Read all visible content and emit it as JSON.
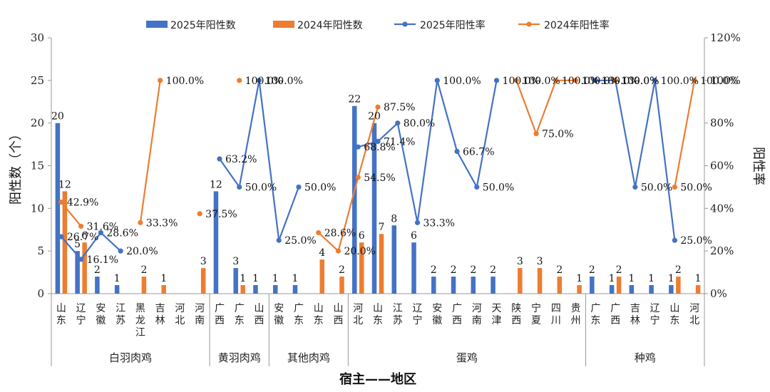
{
  "chart_data": {
    "type": "bar",
    "categories": [
      "山东",
      "辽宁",
      "安徽",
      "江苏",
      "黑龙江",
      "吉林",
      "河北",
      "河南",
      "广西",
      "广东",
      "山西",
      "安徽",
      "广东",
      "山东",
      "山西",
      "河北",
      "山东",
      "江苏",
      "辽宁",
      "安徽",
      "广西",
      "河南",
      "天津",
      "陕西",
      "宁夏",
      "四川",
      "贵州",
      "广东",
      "广西",
      "吉林",
      "辽宁",
      "山东",
      "河北"
    ],
    "groups": [
      {
        "name": "白羽肉鸡",
        "start": 0,
        "end": 7
      },
      {
        "name": "黄羽肉鸡",
        "start": 8,
        "end": 10
      },
      {
        "name": "其他肉鸡",
        "start": 11,
        "end": 14
      },
      {
        "name": "蛋鸡",
        "start": 15,
        "end": 26
      },
      {
        "name": "种鸡",
        "start": 27,
        "end": 32
      }
    ],
    "series": [
      {
        "name": "2025年阳性数",
        "kind": "bar",
        "axis": "left",
        "color": "#4472C4",
        "values": [
          20,
          5,
          2,
          1,
          null,
          null,
          null,
          null,
          12,
          3,
          1,
          1,
          1,
          null,
          null,
          22,
          20,
          8,
          6,
          2,
          2,
          2,
          2,
          null,
          null,
          null,
          null,
          2,
          1,
          1,
          1,
          1,
          null
        ],
        "labels": [
          "20",
          "5",
          "2",
          "1",
          "",
          "",
          "",
          "",
          "12",
          "3",
          "1",
          "1",
          "1",
          "",
          "",
          "22",
          "20",
          "8",
          "6",
          "2",
          "2",
          "2",
          "2",
          "",
          "",
          "",
          "",
          "2",
          "1",
          "1",
          "1",
          "1",
          ""
        ]
      },
      {
        "name": "2024年阳性数",
        "kind": "bar",
        "axis": "left",
        "color": "#ED7D31",
        "values": [
          12,
          6,
          null,
          null,
          2,
          1,
          null,
          3,
          null,
          1,
          null,
          null,
          null,
          4,
          2,
          6,
          7,
          null,
          null,
          null,
          null,
          null,
          null,
          3,
          3,
          2,
          1,
          null,
          2,
          null,
          null,
          2,
          1
        ],
        "labels": [
          "12",
          "6",
          "",
          "",
          "2",
          "1",
          "",
          "3",
          "",
          "1",
          "",
          "",
          "",
          "4",
          "2",
          "6",
          "7",
          "",
          "",
          "",
          "",
          "",
          "",
          "3",
          "3",
          "2",
          "1",
          "",
          "2",
          "",
          "",
          "2",
          "1"
        ]
      },
      {
        "name": "2025年阳性率",
        "kind": "line",
        "axis": "right",
        "color": "#4472C4",
        "values": [
          26.7,
          16.1,
          28.6,
          20.0,
          null,
          null,
          null,
          null,
          63.2,
          50.0,
          100.0,
          25.0,
          50.0,
          null,
          null,
          68.8,
          71.4,
          80.0,
          33.3,
          100.0,
          66.7,
          50.0,
          100.0,
          null,
          null,
          null,
          null,
          100.0,
          100.0,
          50.0,
          100.0,
          25.0,
          null
        ],
        "labels": [
          "26.7%",
          "16.1%",
          "28.6%",
          "20.0%",
          "",
          "",
          "",
          "",
          "63.2%",
          "50.0%",
          "100.0%",
          "25.0%",
          "50.0%",
          "",
          "",
          "68.8%",
          "71.4%",
          "80.0%",
          "33.3%",
          "100.0%",
          "66.7%",
          "50.0%",
          "100.0%",
          "",
          "",
          "",
          "",
          "100.0%",
          "100.0%",
          "50.0%",
          "100.0%",
          "25.0%",
          ""
        ]
      },
      {
        "name": "2024年阳性率",
        "kind": "line",
        "axis": "right",
        "color": "#ED7D31",
        "values": [
          42.9,
          31.6,
          null,
          null,
          33.3,
          100.0,
          null,
          37.5,
          null,
          100.0,
          null,
          null,
          null,
          28.6,
          20.0,
          54.5,
          87.5,
          null,
          null,
          null,
          null,
          null,
          null,
          100.0,
          75.0,
          100.0,
          100.0,
          null,
          100.0,
          null,
          null,
          50.0,
          100.0
        ],
        "labels": [
          "42.9%",
          "31.6%",
          "",
          "",
          "33.3%",
          "100.0%",
          "",
          "37.5%",
          "",
          "100.0%",
          "",
          "",
          "",
          "28.6%",
          "20.0%",
          "54.5%",
          "87.5%",
          "",
          "",
          "",
          "",
          "",
          "",
          "100.0%",
          "75.0%",
          "100.0%",
          "100.0%",
          "",
          "100.0%",
          "",
          "",
          "50.0%",
          "100.0%"
        ]
      }
    ],
    "ylabel": "阳性数（个）",
    "y2label": "阳性率",
    "xlabel": "宿主——地区",
    "ylim": [
      0,
      30
    ],
    "yticks": [
      "0",
      "5",
      "10",
      "15",
      "20",
      "25",
      "30"
    ],
    "y2lim": [
      0,
      120
    ],
    "y2ticks": [
      "0%",
      "20%",
      "40%",
      "60%",
      "80%",
      "100%",
      "120%"
    ],
    "grid": false,
    "legend_position": "top"
  }
}
